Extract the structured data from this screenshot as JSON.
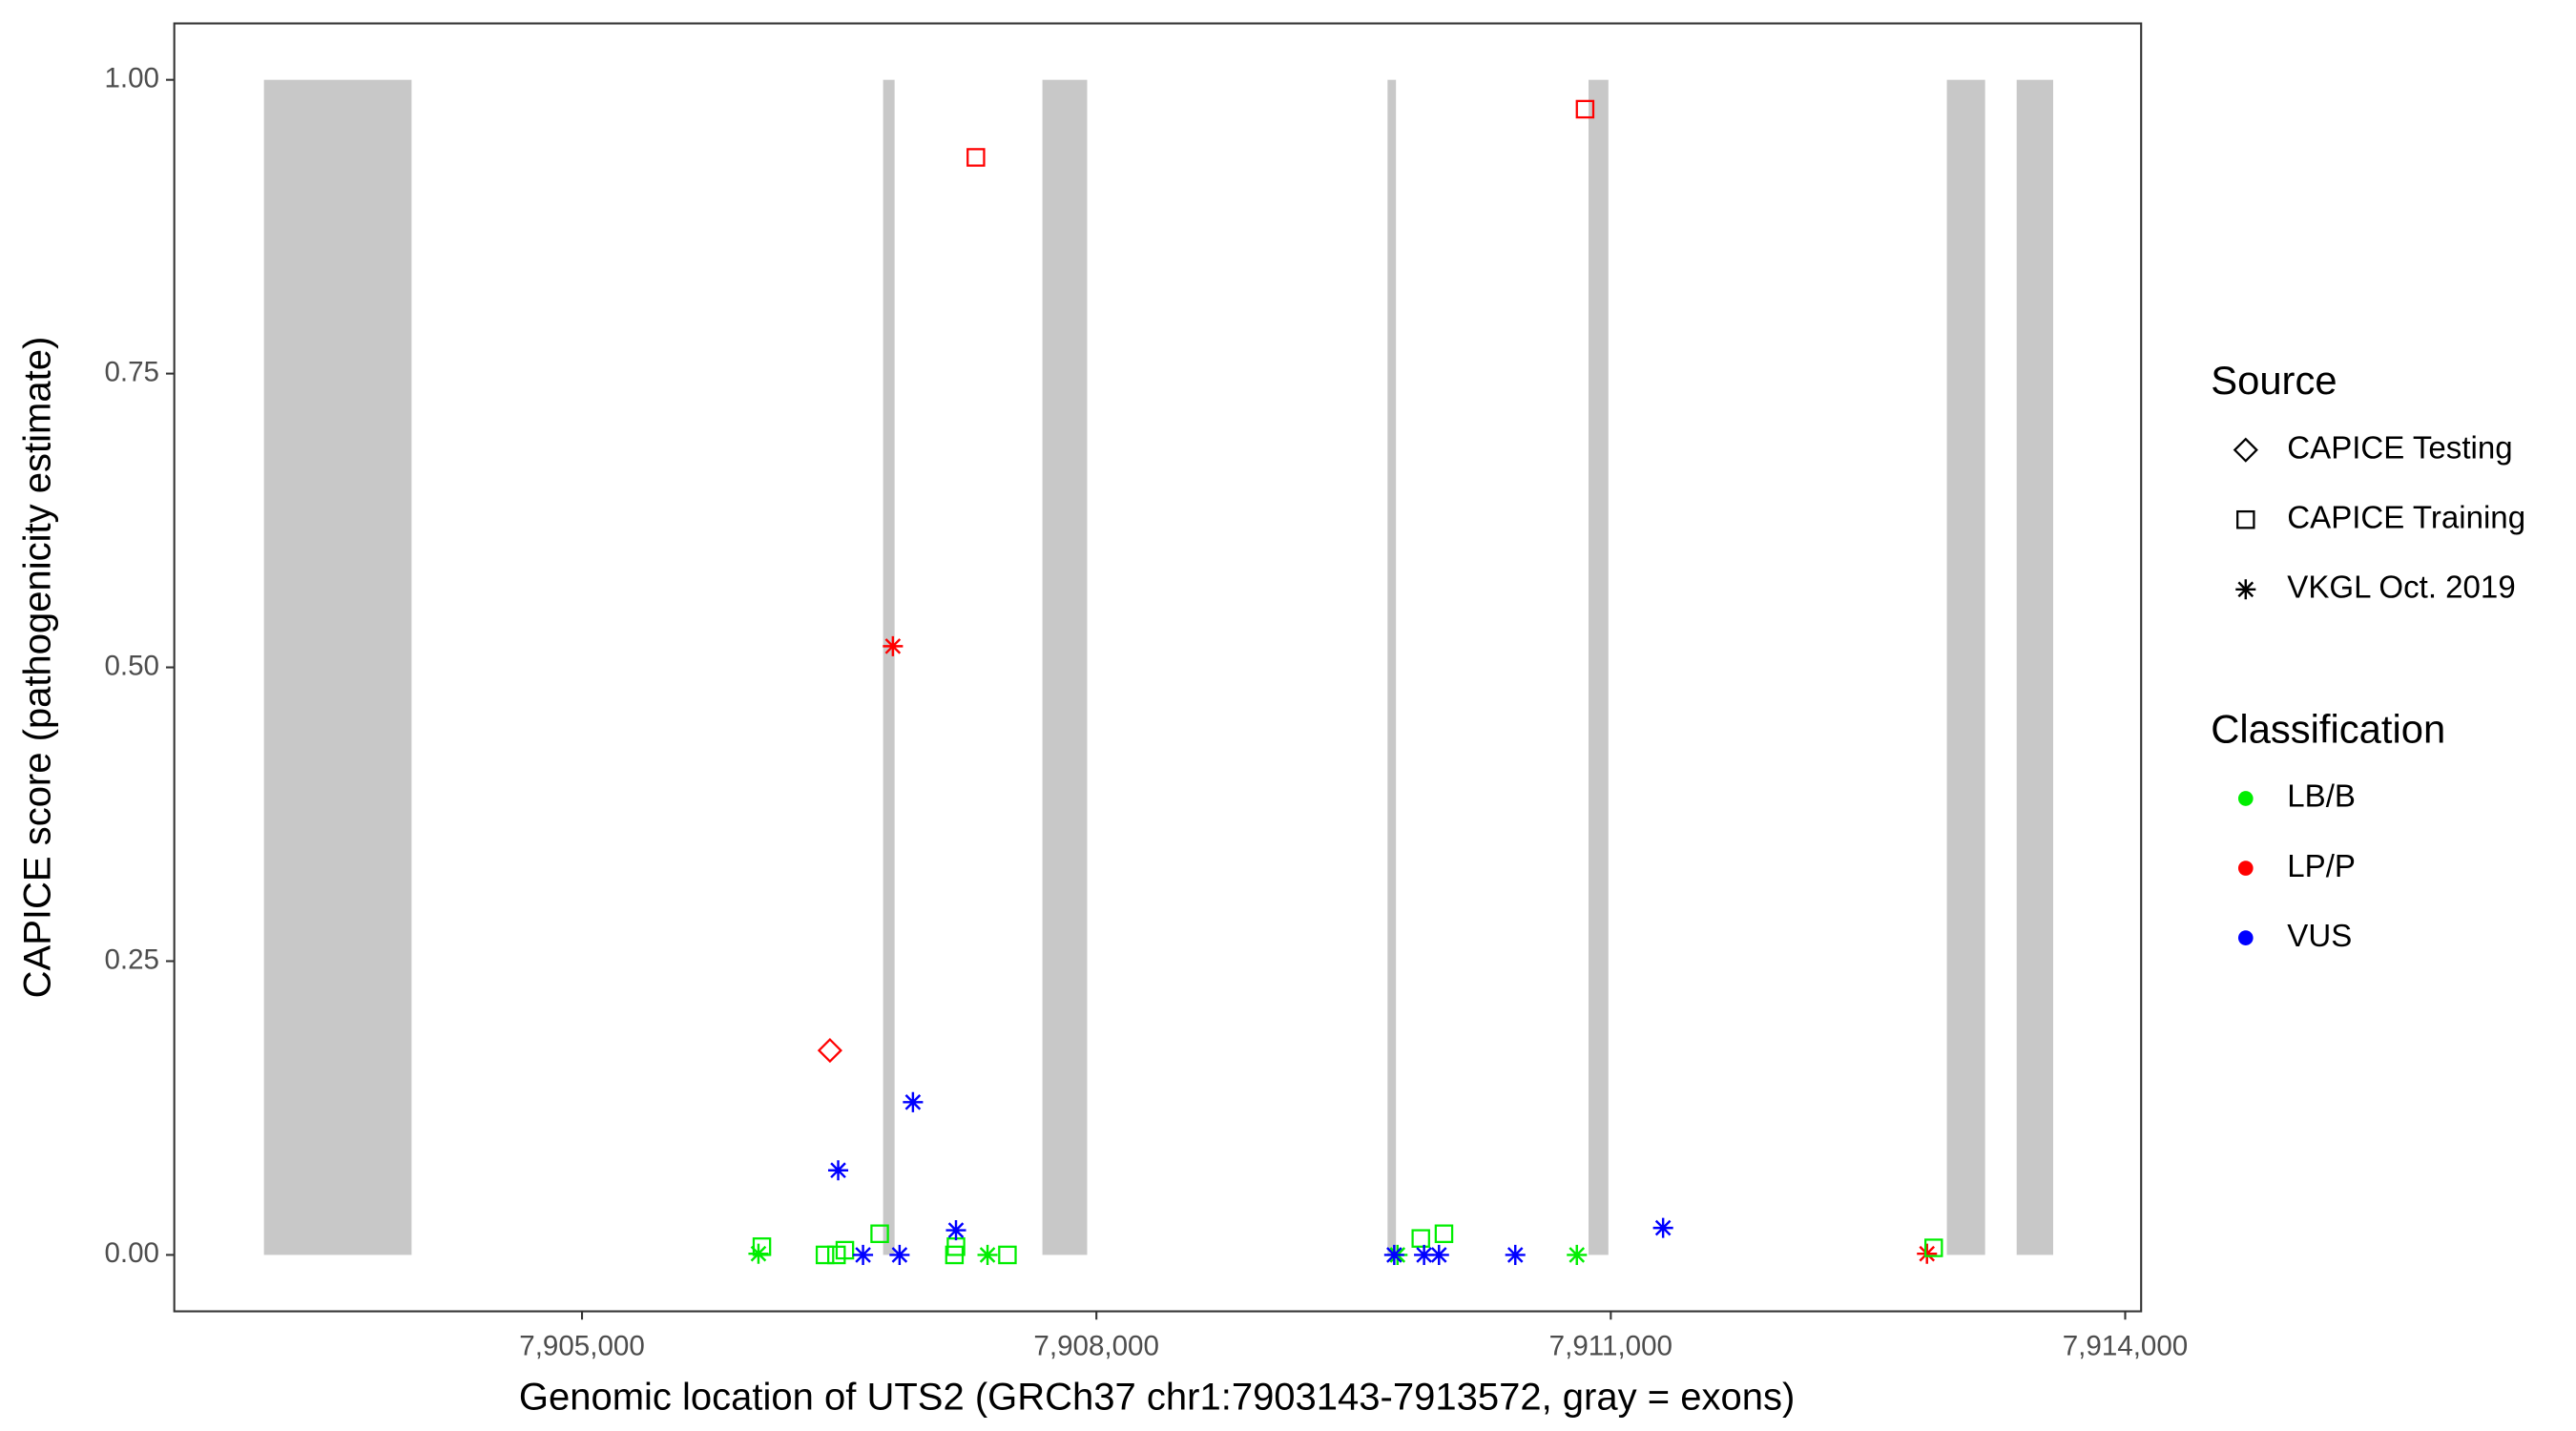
{
  "chart_data": {
    "type": "scatter",
    "x_label": "Genomic location of UTS2 (GRCh37 chr1:7903143-7913572, gray = exons)",
    "y_label": "CAPICE score (pathogenicity estimate)",
    "xlim": [
      7902622,
      7914093
    ],
    "ylim": [
      -0.048,
      1.048
    ],
    "xticks": [
      {
        "value": 7905000,
        "label": "7,905,000"
      },
      {
        "value": 7908000,
        "label": "7,908,000"
      },
      {
        "value": 7911000,
        "label": "7,911,000"
      },
      {
        "value": 7914000,
        "label": "7,914,000"
      }
    ],
    "yticks": [
      {
        "value": 0,
        "label": "0.00"
      },
      {
        "value": 0.25,
        "label": "0.25"
      },
      {
        "value": 0.5,
        "label": "0.50"
      },
      {
        "value": 0.75,
        "label": "0.75"
      },
      {
        "value": 1,
        "label": "1.00"
      }
    ],
    "grid": false,
    "exons": {
      "color": "#c8c8c8",
      "bottom": 0,
      "top": 1,
      "start": [
        7903145,
        7906756,
        7907685,
        7909698,
        7910870,
        7912960,
        7913367
      ],
      "end": [
        7904006,
        7906823,
        7907946,
        7909747,
        7910986,
        7913183,
        7913580
      ]
    },
    "shape_legend": {
      "title": "Source",
      "labels": [
        "CAPICE Testing",
        "CAPICE Training",
        "VKGL Oct. 2019"
      ],
      "shapes": [
        "diamond",
        "square",
        "asterisk"
      ]
    },
    "color_legend": {
      "title": "Classification",
      "labels": [
        "LB/B",
        "LP/P",
        "VUS"
      ],
      "colors": [
        "#00ee00",
        "#ff0000",
        "#0000ff"
      ]
    },
    "points": {
      "x": [
        7907297,
        7910850,
        7906813,
        7906446,
        7912844,
        7906049,
        7906417,
        7906484,
        7906533,
        7906736,
        7907172,
        7907181,
        7907481,
        7909892,
        7910027,
        7912883,
        7906029,
        7907365,
        7910802,
        7909756,
        7906494,
        7906930,
        7907181,
        7906639,
        7906852,
        7909737,
        7909911,
        7909998,
        7910443,
        7911305
      ],
      "y": [
        0.934,
        0.975,
        0.518,
        0.174,
        0.001,
        0.007,
        0,
        0,
        0.004,
        0.018,
        0,
        0.007,
        0,
        0.014,
        0.018,
        0.006,
        0.001,
        0,
        0,
        0,
        0.072,
        0.13,
        0.021,
        0,
        0,
        0,
        0,
        0,
        0,
        0.023
      ],
      "source": [
        "CAPICE Training",
        "CAPICE Training",
        "VKGL Oct. 2019",
        "CAPICE Testing",
        "VKGL Oct. 2019",
        "CAPICE Training",
        "CAPICE Training",
        "CAPICE Training",
        "CAPICE Training",
        "CAPICE Training",
        "CAPICE Training",
        "CAPICE Training",
        "CAPICE Training",
        "CAPICE Training",
        "CAPICE Training",
        "CAPICE Training",
        "VKGL Oct. 2019",
        "VKGL Oct. 2019",
        "VKGL Oct. 2019",
        "VKGL Oct. 2019",
        "VKGL Oct. 2019",
        "VKGL Oct. 2019",
        "VKGL Oct. 2019",
        "VKGL Oct. 2019",
        "VKGL Oct. 2019",
        "VKGL Oct. 2019",
        "VKGL Oct. 2019",
        "VKGL Oct. 2019",
        "VKGL Oct. 2019",
        "VKGL Oct. 2019"
      ],
      "classification": [
        "LP/P",
        "LP/P",
        "LP/P",
        "LP/P",
        "LP/P",
        "LB/B",
        "LB/B",
        "LB/B",
        "LB/B",
        "LB/B",
        "LB/B",
        "LB/B",
        "LB/B",
        "LB/B",
        "LB/B",
        "LB/B",
        "LB/B",
        "LB/B",
        "LB/B",
        "LB/B",
        "VUS",
        "VUS",
        "VUS",
        "VUS",
        "VUS",
        "VUS",
        "VUS",
        "VUS",
        "VUS",
        "VUS"
      ]
    }
  }
}
